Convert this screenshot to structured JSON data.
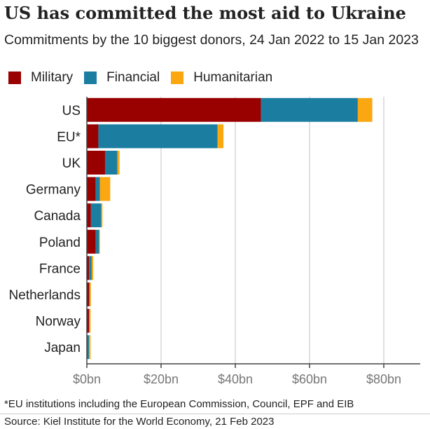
{
  "header": {
    "title": "US has committed the most aid to Ukraine",
    "subtitle": "Commitments by the 10 biggest donors, 24 Jan 2022 to 15 Jan 2023"
  },
  "footer": {
    "footnote": "*EU institutions including the European Commission, Council, EPF and EIB",
    "source": "Source: Kiel Institute for the World Economy, 21 Feb 2023"
  },
  "chart_data": {
    "type": "bar",
    "orientation": "horizontal",
    "stacked": true,
    "categories": [
      "US",
      "EU*",
      "UK",
      "Germany",
      "Canada",
      "Poland",
      "France",
      "Netherlands",
      "Norway",
      "Japan"
    ],
    "series": [
      {
        "name": "Military",
        "color": "#990000",
        "values": [
          46.9,
          3.1,
          4.9,
          2.4,
          1.1,
          2.4,
          0.6,
          0.6,
          0.6,
          0.0
        ]
      },
      {
        "name": "Financial",
        "color": "#1b7ea1",
        "values": [
          26.1,
          32.1,
          3.3,
          1.1,
          2.8,
          0.9,
          0.7,
          0.2,
          0.1,
          0.6
        ]
      },
      {
        "name": "Humanitarian",
        "color": "#fba711",
        "values": [
          3.9,
          1.6,
          0.6,
          2.8,
          0.3,
          0.2,
          0.4,
          0.3,
          0.3,
          0.4
        ]
      }
    ],
    "x_ticks": [
      "$0bn",
      "$20bn",
      "$40bn",
      "$60bn",
      "$80bn"
    ],
    "x_tick_values": [
      0,
      20,
      40,
      60,
      80
    ],
    "xlim": [
      0,
      90
    ],
    "grid": true,
    "legend_position": "top-left"
  }
}
